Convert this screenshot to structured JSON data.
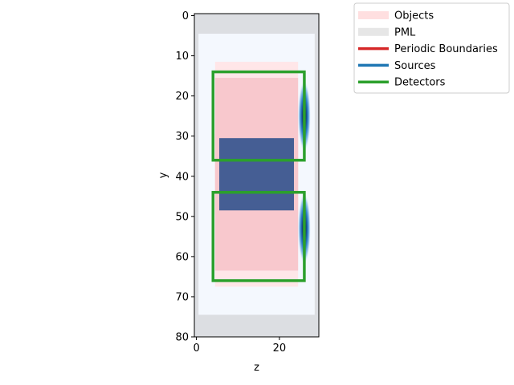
{
  "chart_data": {
    "type": "heatmap",
    "xlabel": "z",
    "ylabel": "y",
    "xlim": [
      -0.5,
      29.5
    ],
    "ylim": [
      80,
      -0.5
    ],
    "x_ticks": [
      0,
      20
    ],
    "y_ticks": [
      0,
      10,
      20,
      30,
      40,
      50,
      60,
      70,
      80
    ],
    "legend": {
      "placement": "outside-top-right",
      "entries": [
        {
          "label": "Objects",
          "color": "#ffdfe0",
          "style": "patch"
        },
        {
          "label": "PML",
          "color": "#e6e6e6",
          "style": "patch"
        },
        {
          "label": "Periodic Boundaries",
          "color": "#d62728",
          "style": "line"
        },
        {
          "label": "Sources",
          "color": "#1f77b4",
          "style": "line"
        },
        {
          "label": "Detectors",
          "color": "#2ca02c",
          "style": "line"
        }
      ]
    },
    "colors": {
      "background": "#f4f8fe",
      "pml": "#dcdee2",
      "object": "#f8c8cd",
      "object_light": "#ffe6e8",
      "inner_object": "#455e94",
      "detector": "#2ca02c",
      "source": "#1f77b4"
    },
    "pml_regions": [
      {
        "z": [
          -0.5,
          29.5
        ],
        "y": [
          -0.5,
          4.5
        ]
      },
      {
        "z": [
          -0.5,
          29.5
        ],
        "y": [
          74.5,
          80
        ]
      },
      {
        "z": [
          -0.5,
          0.5
        ],
        "y": [
          -0.5,
          80
        ]
      },
      {
        "z": [
          28.5,
          29.5
        ],
        "y": [
          -0.5,
          80
        ]
      }
    ],
    "objects": [
      {
        "z": [
          4.5,
          24.5
        ],
        "y": [
          11.5,
          67.5
        ],
        "shade": "light"
      },
      {
        "z": [
          4.5,
          24.5
        ],
        "y": [
          15.5,
          63.5
        ],
        "shade": "main"
      },
      {
        "z": [
          4.5,
          24.5
        ],
        "y": [
          29.5,
          49.5
        ],
        "shade": "main"
      }
    ],
    "inner_objects": [
      {
        "z": [
          5.5,
          23.5
        ],
        "y": [
          30.5,
          48.5
        ]
      }
    ],
    "detectors": [
      {
        "z": [
          4,
          26
        ],
        "y": [
          14,
          36
        ]
      },
      {
        "z": [
          4,
          26
        ],
        "y": [
          44,
          66
        ]
      }
    ],
    "sources": [
      {
        "z": 26,
        "y": 25,
        "half_height": 9
      },
      {
        "z": 26,
        "y": 53,
        "half_height": 9
      }
    ]
  }
}
